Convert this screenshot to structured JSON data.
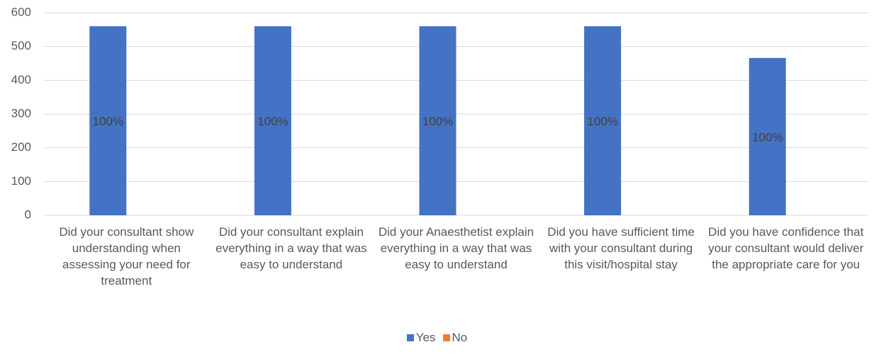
{
  "chart_data": {
    "type": "bar",
    "categories": [
      "Did your consultant show understanding when assessing your need for treatment",
      "Did your consultant explain everything in a way that was easy to understand",
      "Did your Anaesthetist explain everything in a way that was easy to understand",
      "Did you have sufficient time with your consultant during this visit/hospital stay",
      "Did you have confidence that your consultant would deliver the appropriate care for you"
    ],
    "series": [
      {
        "name": "Yes",
        "color": "#4472c4",
        "values": [
          560,
          560,
          560,
          560,
          466
        ],
        "value_labels": [
          "100%",
          "100%",
          "100%",
          "100%",
          "100%"
        ]
      },
      {
        "name": "No",
        "color": "#ed7d31",
        "values": [
          0,
          0,
          0,
          0,
          0
        ]
      }
    ],
    "ylim": [
      0,
      600
    ],
    "yticks": [
      0,
      100,
      200,
      300,
      400,
      500,
      600
    ],
    "grid": true,
    "legend": "bottom"
  }
}
